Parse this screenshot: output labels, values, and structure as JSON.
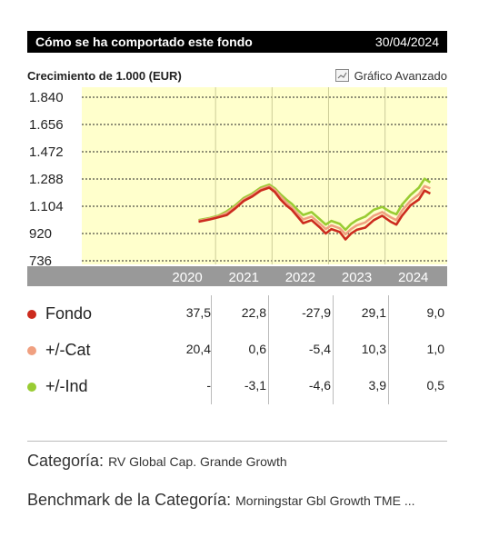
{
  "header": {
    "title": "Cómo se ha comportado este fondo",
    "date": "30/04/2024"
  },
  "chart_header": {
    "subtitle": "Crecimiento de 1.000 (EUR)",
    "advanced_label": "Gráfico Avanzado",
    "advanced_icon": "line-chart-icon"
  },
  "chart_data": {
    "type": "line",
    "yticks": [
      "1.840",
      "1.656",
      "1.472",
      "1.288",
      "1.104",
      "920",
      "736"
    ],
    "ylim": [
      736,
      1840
    ],
    "xticks": [
      "2020",
      "2021",
      "2022",
      "2023",
      "2024"
    ],
    "grid": true,
    "colors": {
      "background": "#ffffcc",
      "axis_band": "#999999"
    },
    "series": [
      {
        "name": "Fondo",
        "color": "#cc2b1e",
        "points": [
          [
            2020.2,
            1000
          ],
          [
            2020.4,
            1015
          ],
          [
            2020.55,
            1030
          ],
          [
            2020.7,
            1045
          ],
          [
            2020.85,
            1090
          ],
          [
            2021.0,
            1140
          ],
          [
            2021.15,
            1170
          ],
          [
            2021.3,
            1210
          ],
          [
            2021.45,
            1230
          ],
          [
            2021.55,
            1200
          ],
          [
            2021.65,
            1150
          ],
          [
            2021.75,
            1110
          ],
          [
            2021.85,
            1080
          ],
          [
            2021.95,
            1035
          ],
          [
            2022.05,
            990
          ],
          [
            2022.2,
            1010
          ],
          [
            2022.35,
            960
          ],
          [
            2022.45,
            920
          ],
          [
            2022.55,
            950
          ],
          [
            2022.7,
            930
          ],
          [
            2022.8,
            880
          ],
          [
            2022.9,
            920
          ],
          [
            2023.0,
            945
          ],
          [
            2023.15,
            960
          ],
          [
            2023.3,
            1010
          ],
          [
            2023.45,
            1040
          ],
          [
            2023.6,
            1000
          ],
          [
            2023.7,
            980
          ],
          [
            2023.8,
            1040
          ],
          [
            2023.95,
            1110
          ],
          [
            2024.1,
            1150
          ],
          [
            2024.2,
            1210
          ],
          [
            2024.3,
            1190
          ]
        ]
      },
      {
        "name": "+/-Cat",
        "color": "#f0a080",
        "points": [
          [
            2020.2,
            1005
          ],
          [
            2020.4,
            1020
          ],
          [
            2020.55,
            1035
          ],
          [
            2020.7,
            1060
          ],
          [
            2020.85,
            1100
          ],
          [
            2021.0,
            1150
          ],
          [
            2021.15,
            1180
          ],
          [
            2021.3,
            1220
          ],
          [
            2021.45,
            1240
          ],
          [
            2021.55,
            1215
          ],
          [
            2021.65,
            1170
          ],
          [
            2021.75,
            1130
          ],
          [
            2021.85,
            1095
          ],
          [
            2021.95,
            1055
          ],
          [
            2022.05,
            1015
          ],
          [
            2022.2,
            1035
          ],
          [
            2022.35,
            985
          ],
          [
            2022.45,
            950
          ],
          [
            2022.55,
            975
          ],
          [
            2022.7,
            955
          ],
          [
            2022.8,
            915
          ],
          [
            2022.9,
            950
          ],
          [
            2023.0,
            975
          ],
          [
            2023.15,
            995
          ],
          [
            2023.3,
            1040
          ],
          [
            2023.45,
            1065
          ],
          [
            2023.6,
            1030
          ],
          [
            2023.7,
            1010
          ],
          [
            2023.8,
            1075
          ],
          [
            2023.95,
            1140
          ],
          [
            2024.1,
            1185
          ],
          [
            2024.2,
            1240
          ],
          [
            2024.3,
            1225
          ]
        ]
      },
      {
        "name": "+/-Ind",
        "color": "#99cc33",
        "points": [
          [
            2020.2,
            1010
          ],
          [
            2020.4,
            1025
          ],
          [
            2020.55,
            1040
          ],
          [
            2020.7,
            1070
          ],
          [
            2020.85,
            1110
          ],
          [
            2021.0,
            1160
          ],
          [
            2021.15,
            1190
          ],
          [
            2021.3,
            1230
          ],
          [
            2021.45,
            1250
          ],
          [
            2021.55,
            1225
          ],
          [
            2021.65,
            1185
          ],
          [
            2021.75,
            1150
          ],
          [
            2021.85,
            1120
          ],
          [
            2021.95,
            1080
          ],
          [
            2022.05,
            1045
          ],
          [
            2022.2,
            1065
          ],
          [
            2022.35,
            1015
          ],
          [
            2022.45,
            980
          ],
          [
            2022.55,
            1005
          ],
          [
            2022.7,
            985
          ],
          [
            2022.8,
            945
          ],
          [
            2022.9,
            985
          ],
          [
            2023.0,
            1010
          ],
          [
            2023.15,
            1035
          ],
          [
            2023.3,
            1080
          ],
          [
            2023.45,
            1100
          ],
          [
            2023.6,
            1065
          ],
          [
            2023.7,
            1050
          ],
          [
            2023.8,
            1115
          ],
          [
            2023.95,
            1180
          ],
          [
            2024.1,
            1230
          ],
          [
            2024.2,
            1290
          ],
          [
            2024.3,
            1265
          ]
        ]
      }
    ]
  },
  "table": {
    "rows": [
      {
        "label": "Fondo",
        "color": "#cc2b1e",
        "values": [
          "37,5",
          "22,8",
          "-27,9",
          "29,1",
          "9,0"
        ]
      },
      {
        "label": "+/-Cat",
        "color": "#f0a080",
        "values": [
          "20,4",
          "0,6",
          "-5,4",
          "10,3",
          "1,0"
        ]
      },
      {
        "label": "+/-Ind",
        "color": "#99cc33",
        "values": [
          "-",
          "-3,1",
          "-4,6",
          "3,9",
          "0,5"
        ]
      }
    ]
  },
  "info": {
    "category_label": "Categoría:",
    "category_value": "RV Global Cap. Grande Growth",
    "benchmark_label": "Benchmark de la Categoría:",
    "benchmark_value": "Morningstar Gbl Growth TME ..."
  }
}
